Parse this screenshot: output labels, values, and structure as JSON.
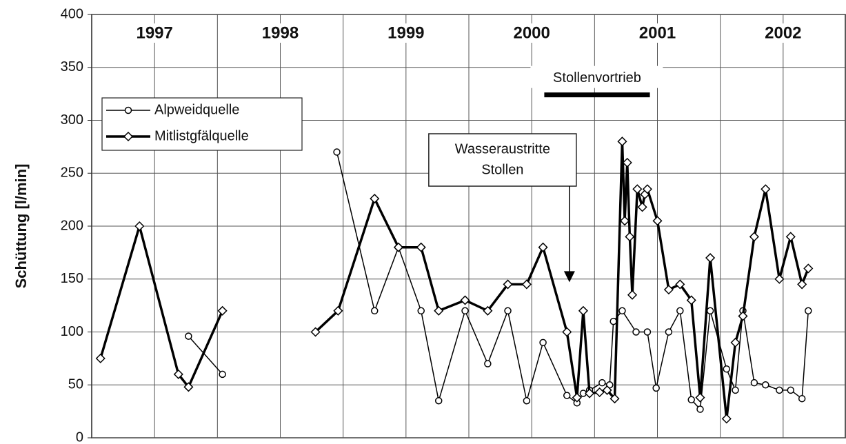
{
  "chart_data": {
    "type": "line",
    "y_label": "Schüttung [l/min]",
    "xlim": [
      1997,
      2003
    ],
    "ylim": [
      0,
      400
    ],
    "yticks": [
      0,
      50,
      100,
      150,
      200,
      250,
      300,
      350,
      400
    ],
    "xgrid": [
      1997.5,
      1998,
      1998.5,
      1999,
      1999.5,
      2000,
      2000.5,
      2001,
      2001.5,
      2002,
      2002.5
    ],
    "year_labels": [
      "1997",
      "1998",
      "1999",
      "2000",
      "2001",
      "2002"
    ],
    "grid": true,
    "legend": "upper left",
    "series": [
      {
        "name": "Alpweidquelle",
        "color": "#000000",
        "marker": "circle",
        "width": 1.5,
        "x": [
          1997.77,
          1998.04,
          null,
          1998.95,
          1999.25,
          1999.44,
          1999.62,
          1999.76,
          1999.97,
          2000.15,
          2000.31,
          2000.46,
          2000.59,
          2000.78,
          2000.86,
          2000.91,
          2000.96,
          2001.06,
          2001.12,
          2001.15,
          2001.22,
          2001.33,
          2001.42,
          2001.49,
          2001.59,
          2001.68,
          2001.77,
          2001.84,
          2001.92,
          2002.05,
          2002.12,
          2002.18,
          2002.27,
          2002.36,
          2002.47,
          2002.56,
          2002.65,
          2002.7
        ],
        "values": [
          96,
          60,
          null,
          270,
          120,
          180,
          120,
          35,
          120,
          70,
          120,
          35,
          90,
          40,
          33,
          42,
          45,
          52,
          50,
          110,
          120,
          100,
          100,
          47,
          100,
          120,
          36,
          27,
          120,
          65,
          45,
          120,
          52,
          50,
          45,
          45,
          37,
          120
        ]
      },
      {
        "name": "Mitlistgfälquelle",
        "color": "#000000",
        "marker": "diamond",
        "width": 3.5,
        "x": [
          1997.07,
          1997.38,
          1997.69,
          1997.77,
          1998.04,
          null,
          1998.78,
          1998.96,
          1999.25,
          1999.44,
          1999.62,
          1999.76,
          1999.97,
          2000.15,
          2000.31,
          2000.46,
          2000.59,
          2000.78,
          2000.86,
          2000.91,
          2000.96,
          2001.04,
          2001.1,
          2001.16,
          2001.22,
          2001.24,
          2001.26,
          2001.28,
          2001.3,
          2001.34,
          2001.38,
          2001.4,
          2001.42,
          2001.5,
          2001.59,
          2001.68,
          2001.77,
          2001.84,
          2001.92,
          2002.05,
          2002.12,
          2002.18,
          2002.27,
          2002.36,
          2002.47,
          2002.56,
          2002.65,
          2002.7
        ],
        "values": [
          75,
          200,
          60,
          48,
          120,
          null,
          100,
          120,
          226,
          180,
          180,
          120,
          130,
          120,
          145,
          145,
          180,
          100,
          38,
          120,
          42,
          43,
          45,
          37,
          280,
          205,
          260,
          190,
          135,
          235,
          218,
          230,
          235,
          205,
          140,
          145,
          130,
          38,
          170,
          18,
          90,
          115,
          190,
          235,
          150,
          190,
          145,
          160
        ]
      }
    ],
    "period": {
      "label": "Stollenvortrieb",
      "x": [
        2000.6,
        2001.44
      ],
      "y": 324
    },
    "arrow_note": {
      "lines": [
        "Wasseraustritte",
        "Stollen"
      ],
      "x": 2000.8,
      "y": 147
    }
  }
}
